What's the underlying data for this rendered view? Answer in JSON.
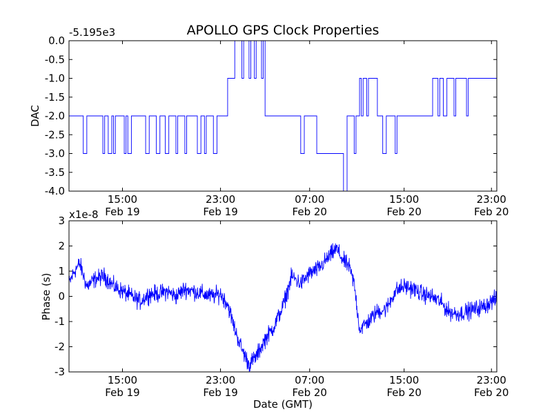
{
  "chart_data": [
    {
      "type": "line",
      "title": "APOLLO GPS Clock Properties",
      "offset_label": "-5.195e3",
      "ylabel": "DAC",
      "xlabel": "",
      "ylim": [
        -4.0,
        0.0
      ],
      "yticks": [
        {
          "value": 0.0,
          "label": "0.0"
        },
        {
          "value": -0.5,
          "label": "-0.5"
        },
        {
          "value": -1.0,
          "label": "-1.0"
        },
        {
          "value": -1.5,
          "label": "-1.5"
        },
        {
          "value": -2.0,
          "label": "-2.0"
        },
        {
          "value": -2.5,
          "label": "-2.5"
        },
        {
          "value": -3.0,
          "label": "-3.0"
        },
        {
          "value": -3.5,
          "label": "-3.5"
        },
        {
          "value": -4.0,
          "label": "-4.0"
        }
      ],
      "xlim_hours": [
        10.0,
        34.0
      ],
      "xticks": [
        {
          "hour": 13.0,
          "time": "15:00",
          "date": "Feb 19"
        },
        {
          "hour": 18.5,
          "time": "23:00",
          "date": "Feb 19"
        },
        {
          "hour": 23.5,
          "time": "07:00",
          "date": "Feb 20"
        },
        {
          "hour": 28.8,
          "time": "15:00",
          "date": "Feb 20"
        },
        {
          "hour": 33.7,
          "time": "23:00",
          "date": "Feb 20"
        }
      ],
      "series": [
        {
          "name": "DAC",
          "color": "#0000ff",
          "segments": [
            {
              "start": 10.0,
              "end": 10.6,
              "level": -2.0
            },
            {
              "start": 10.6,
              "end": 14.0,
              "level": -2.0,
              "dropouts": [
                [
                  10.8,
                  11.0
                ],
                [
                  11.9,
                  12.0
                ],
                [
                  12.2,
                  12.4
                ],
                [
                  12.5,
                  12.6
                ],
                [
                  13.1,
                  13.2
                ],
                [
                  13.3,
                  13.5
                ]
              ],
              "drop_level": -3.0
            },
            {
              "start": 14.0,
              "end": 18.9,
              "level": -2.0,
              "dropouts": [
                [
                  14.3,
                  14.5
                ],
                [
                  14.9,
                  15.1
                ],
                [
                  15.4,
                  15.6
                ],
                [
                  16.0,
                  16.1
                ],
                [
                  16.5,
                  16.6
                ],
                [
                  17.2,
                  17.4
                ],
                [
                  17.6,
                  17.7
                ],
                [
                  18.1,
                  18.3
                ]
              ],
              "drop_level": -3.0
            },
            {
              "start": 18.9,
              "end": 19.3,
              "level": -1.0
            },
            {
              "start": 19.3,
              "end": 21.0,
              "level": 0.0,
              "dropouts": [
                [
                  19.7,
                  19.8
                ],
                [
                  20.1,
                  20.2
                ],
                [
                  20.4,
                  20.5
                ],
                [
                  20.8,
                  20.9
                ]
              ],
              "drop_level": -1.0
            },
            {
              "start": 21.0,
              "end": 23.9,
              "level": -2.0,
              "dropouts": [
                [
                  23.0,
                  23.2
                ]
              ],
              "drop_level": -3.0
            },
            {
              "start": 23.9,
              "end": 25.4,
              "level": -3.0
            },
            {
              "start": 25.4,
              "end": 25.6,
              "level": -4.0
            },
            {
              "start": 25.6,
              "end": 26.3,
              "level": -2.0,
              "dropouts": [
                [
                  26.0,
                  26.1
                ]
              ],
              "drop_level": -3.0
            },
            {
              "start": 26.3,
              "end": 27.3,
              "level": -1.0,
              "dropouts": [
                [
                  26.4,
                  26.5
                ],
                [
                  26.7,
                  26.8
                ]
              ],
              "drop_level": -2.0
            },
            {
              "start": 27.3,
              "end": 30.4,
              "level": -2.0,
              "dropouts": [
                [
                  27.6,
                  27.8
                ],
                [
                  28.3,
                  28.4
                ]
              ],
              "drop_level": -3.0
            },
            {
              "start": 30.4,
              "end": 34.0,
              "level": -1.0,
              "dropouts": [
                [
                  30.7,
                  30.8
                ],
                [
                  31.0,
                  31.2
                ],
                [
                  31.6,
                  31.7
                ],
                [
                  32.3,
                  32.4
                ]
              ],
              "drop_level": -2.0
            }
          ]
        }
      ]
    },
    {
      "type": "line",
      "title": "",
      "offset_label": "x1e-8",
      "ylabel": "Phase (s)",
      "xlabel": "Date (GMT)",
      "ylim": [
        -3,
        3
      ],
      "yticks": [
        {
          "value": 3,
          "label": "3"
        },
        {
          "value": 2,
          "label": "2"
        },
        {
          "value": 1,
          "label": "1"
        },
        {
          "value": 0,
          "label": "0"
        },
        {
          "value": -1,
          "label": "-1"
        },
        {
          "value": -2,
          "label": "-2"
        },
        {
          "value": -3,
          "label": "-3"
        }
      ],
      "xlim_hours": [
        10.0,
        34.0
      ],
      "xticks": [
        {
          "hour": 13.0,
          "time": "15:00",
          "date": "Feb 19"
        },
        {
          "hour": 18.5,
          "time": "23:00",
          "date": "Feb 19"
        },
        {
          "hour": 23.5,
          "time": "07:00",
          "date": "Feb 20"
        },
        {
          "hour": 28.8,
          "time": "15:00",
          "date": "Feb 20"
        },
        {
          "hour": 33.7,
          "time": "23:00",
          "date": "Feb 20"
        }
      ],
      "series": [
        {
          "name": "Phase",
          "color": "#0000ff",
          "noise_amplitude": 0.28,
          "x": [
            10.0,
            10.3,
            10.6,
            11.0,
            11.5,
            12.0,
            12.5,
            13.0,
            13.5,
            14.0,
            14.5,
            15.0,
            15.5,
            16.0,
            16.5,
            17.0,
            17.5,
            18.0,
            18.5,
            18.9,
            19.3,
            19.7,
            20.1,
            20.5,
            21.0,
            21.5,
            22.0,
            22.5,
            23.0,
            23.5,
            24.0,
            24.5,
            25.0,
            25.4,
            25.7,
            26.0,
            26.3,
            26.8,
            27.3,
            27.8,
            28.3,
            28.8,
            29.3,
            29.8,
            30.3,
            30.8,
            31.3,
            31.8,
            32.3,
            32.8,
            33.3,
            33.7,
            34.0
          ],
          "y": [
            0.5,
            1.0,
            1.3,
            0.4,
            0.7,
            0.8,
            0.4,
            0.2,
            0.0,
            -0.2,
            0.1,
            0.1,
            0.2,
            0.0,
            0.3,
            0.2,
            0.1,
            0.0,
            0.1,
            -0.3,
            -1.3,
            -2.1,
            -2.7,
            -2.4,
            -1.7,
            -1.2,
            -0.4,
            0.8,
            0.5,
            0.9,
            1.1,
            1.5,
            1.9,
            1.4,
            1.2,
            0.5,
            -1.3,
            -1.0,
            -0.6,
            -0.5,
            0.2,
            0.4,
            0.3,
            0.1,
            0.0,
            -0.2,
            -0.6,
            -0.7,
            -0.6,
            -0.5,
            -0.4,
            -0.2,
            -0.1
          ]
        }
      ]
    }
  ]
}
